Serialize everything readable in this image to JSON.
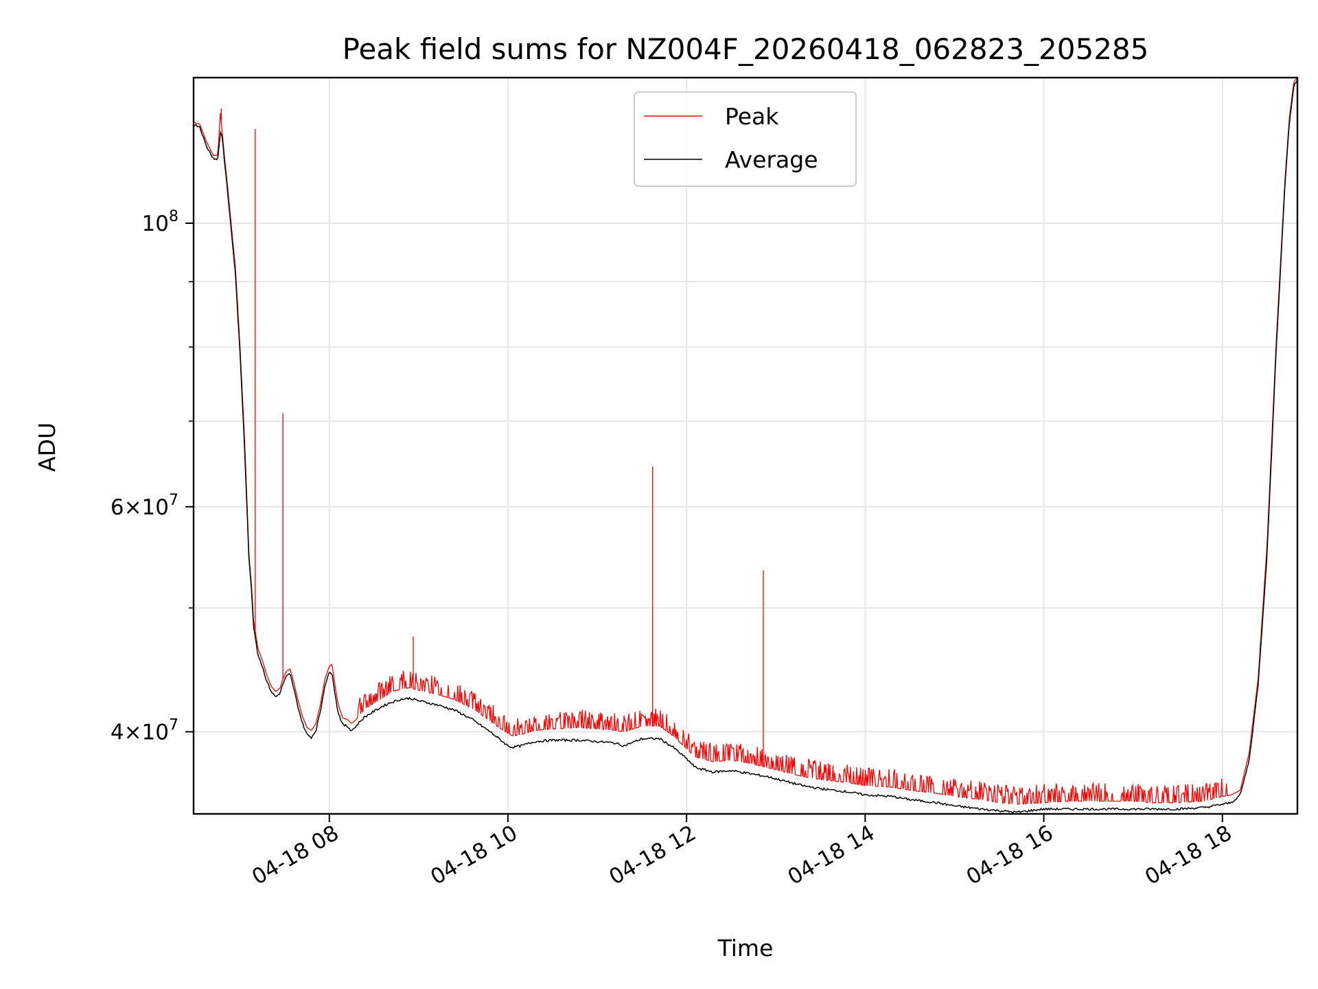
{
  "chart_data": {
    "type": "line",
    "title": "Peak field sums for NZ004F_20260418_062823_205285",
    "xlabel": "Time",
    "ylabel": "ADU",
    "yscale": "log",
    "xlim_hours": [
      6.48,
      18.84
    ],
    "ylim": [
      34500000,
      130000000
    ],
    "grid": true,
    "legend_position": "upper center",
    "x_ticks": [
      {
        "value": 8,
        "label": "04-18 08"
      },
      {
        "value": 10,
        "label": "04-18 10"
      },
      {
        "value": 12,
        "label": "04-18 12"
      },
      {
        "value": 14,
        "label": "04-18 14"
      },
      {
        "value": 16,
        "label": "04-18 16"
      },
      {
        "value": 18,
        "label": "04-18 18"
      }
    ],
    "y_ticks": [
      {
        "value": 40000000,
        "mantissa": "4",
        "exponent": "7"
      },
      {
        "value": 60000000,
        "mantissa": "6",
        "exponent": "7"
      },
      {
        "value": 100000000,
        "mantissa": "",
        "exponent": "8"
      }
    ],
    "y_minor_ticks": [
      50000000,
      70000000,
      80000000,
      90000000
    ],
    "series": [
      {
        "name": "Peak",
        "color": "#ff0000",
        "x": [
          6.48,
          6.55,
          6.62,
          6.7,
          6.75,
          6.78,
          6.8,
          6.83,
          6.86,
          6.9,
          6.95,
          7.0,
          7.05,
          7.08,
          7.1,
          7.13,
          7.15,
          7.18,
          7.2,
          7.25,
          7.3,
          7.35,
          7.4,
          7.45,
          7.48,
          7.52,
          7.56,
          7.6,
          7.65,
          7.7,
          7.75,
          7.8,
          7.85,
          7.9,
          7.95,
          8.0,
          8.03,
          8.07,
          8.1,
          8.15,
          8.2,
          8.25,
          8.3,
          8.35,
          8.4,
          8.5,
          8.6,
          8.7,
          8.8,
          8.9,
          9.0,
          9.2,
          9.4,
          9.6,
          9.8,
          9.9,
          10.0,
          10.05,
          10.15,
          10.3,
          10.5,
          10.8,
          11.0,
          11.2,
          11.3,
          11.5,
          11.7,
          11.85,
          12.0,
          12.1,
          12.3,
          12.5,
          12.7,
          12.9,
          13.1,
          13.3,
          13.5,
          13.8,
          14.0,
          14.3,
          14.5,
          14.8,
          15.0,
          15.3,
          15.5,
          15.7,
          16.0,
          16.3,
          16.5,
          16.8,
          17.0,
          17.2,
          17.5,
          17.8,
          18.0,
          18.1,
          18.2,
          18.3,
          18.4,
          18.5,
          18.6,
          18.7,
          18.75,
          18.8,
          18.84
        ],
        "y": [
          120000000,
          119500000,
          116000000,
          113000000,
          113000000,
          122000000,
          118000000,
          112000000,
          107000000,
          100000000,
          92000000,
          80000000,
          68000000,
          60000000,
          55000000,
          52000000,
          49000000,
          47500000,
          46500000,
          45500000,
          44300000,
          43400000,
          43000000,
          43300000,
          44000000,
          44600000,
          44800000,
          43800000,
          42300000,
          41100000,
          40300000,
          40100000,
          40600000,
          42000000,
          44000000,
          45000000,
          45200000,
          43200000,
          42000000,
          41000000,
          40900000,
          40600000,
          40900000,
          41300000,
          41700000,
          42100000,
          42500000,
          43000000,
          43200000,
          43300000,
          43100000,
          42800000,
          42400000,
          41700000,
          40800000,
          40300000,
          39900000,
          39700000,
          39800000,
          40100000,
          40200000,
          40300000,
          40200000,
          40100000,
          40000000,
          40400000,
          40400000,
          39700000,
          38800000,
          38200000,
          37900000,
          38000000,
          37800000,
          37500000,
          37200000,
          36900000,
          36700000,
          36500000,
          36300000,
          36200000,
          36000000,
          35800000,
          35600000,
          35400000,
          35200000,
          35100000,
          35200000,
          35300000,
          35300000,
          35300000,
          35300000,
          35200000,
          35200000,
          35300000,
          35600000,
          35700000,
          36000000,
          38500000,
          44000000,
          56000000,
          80000000,
          108000000,
          121000000,
          129000000,
          130000000
        ],
        "spikes": [
          {
            "x": 6.79,
            "y": 123000000
          },
          {
            "x": 7.05,
            "y": 68000000
          },
          {
            "x": 7.17,
            "y": 118500000
          },
          {
            "x": 7.48,
            "y": 71000000
          },
          {
            "x": 8.94,
            "y": 47500000
          },
          {
            "x": 11.62,
            "y": 64500000
          },
          {
            "x": 12.86,
            "y": 53500000
          }
        ]
      },
      {
        "name": "Average",
        "color": "#000000",
        "x": [
          6.48,
          6.55,
          6.62,
          6.7,
          6.75,
          6.78,
          6.8,
          6.83,
          6.86,
          6.9,
          6.95,
          7.0,
          7.05,
          7.08,
          7.1,
          7.13,
          7.15,
          7.18,
          7.2,
          7.25,
          7.3,
          7.35,
          7.4,
          7.45,
          7.48,
          7.52,
          7.56,
          7.6,
          7.65,
          7.7,
          7.75,
          7.8,
          7.85,
          7.9,
          7.95,
          8.0,
          8.03,
          8.07,
          8.1,
          8.15,
          8.2,
          8.25,
          8.3,
          8.35,
          8.4,
          8.5,
          8.6,
          8.7,
          8.8,
          8.9,
          9.0,
          9.2,
          9.4,
          9.6,
          9.8,
          9.9,
          10.0,
          10.05,
          10.15,
          10.3,
          10.5,
          10.8,
          11.0,
          11.2,
          11.3,
          11.5,
          11.7,
          11.85,
          12.0,
          12.1,
          12.3,
          12.5,
          12.7,
          12.9,
          13.1,
          13.3,
          13.5,
          13.8,
          14.0,
          14.3,
          14.5,
          14.8,
          15.0,
          15.3,
          15.5,
          15.7,
          16.0,
          16.3,
          16.5,
          16.8,
          17.0,
          17.2,
          17.5,
          17.8,
          18.0,
          18.1,
          18.2,
          18.3,
          18.4,
          18.5,
          18.6,
          18.7,
          18.75,
          18.8,
          18.84
        ],
        "y": [
          119500000,
          119000000,
          115000000,
          112500000,
          112000000,
          118000000,
          117000000,
          111000000,
          106000000,
          99000000,
          91000000,
          79000000,
          67000000,
          59500000,
          54500000,
          51500000,
          48500000,
          47000000,
          46000000,
          45000000,
          43800000,
          43000000,
          42600000,
          42900000,
          43600000,
          44200000,
          44400000,
          43300000,
          41800000,
          40600000,
          39800000,
          39600000,
          40100000,
          41500000,
          43500000,
          44500000,
          44500000,
          42500000,
          41400000,
          40500000,
          40400000,
          40100000,
          40400000,
          40800000,
          41100000,
          41500000,
          41900000,
          42200000,
          42400000,
          42500000,
          42300000,
          42000000,
          41600000,
          40900000,
          40000000,
          39500000,
          39000000,
          38900000,
          39000000,
          39300000,
          39400000,
          39400000,
          39300000,
          39200000,
          39000000,
          39500000,
          39500000,
          38900000,
          38100000,
          37500000,
          37200000,
          37300000,
          37100000,
          36900000,
          36600000,
          36300000,
          36100000,
          35900000,
          35700000,
          35600000,
          35400000,
          35200000,
          35000000,
          34800000,
          34700000,
          34600000,
          34800000,
          34800000,
          34800000,
          34800000,
          34800000,
          34800000,
          34800000,
          34900000,
          35100000,
          35200000,
          35700000,
          38000000,
          43500000,
          55000000,
          79000000,
          107000000,
          120000000,
          128000000,
          129500000
        ]
      }
    ]
  }
}
